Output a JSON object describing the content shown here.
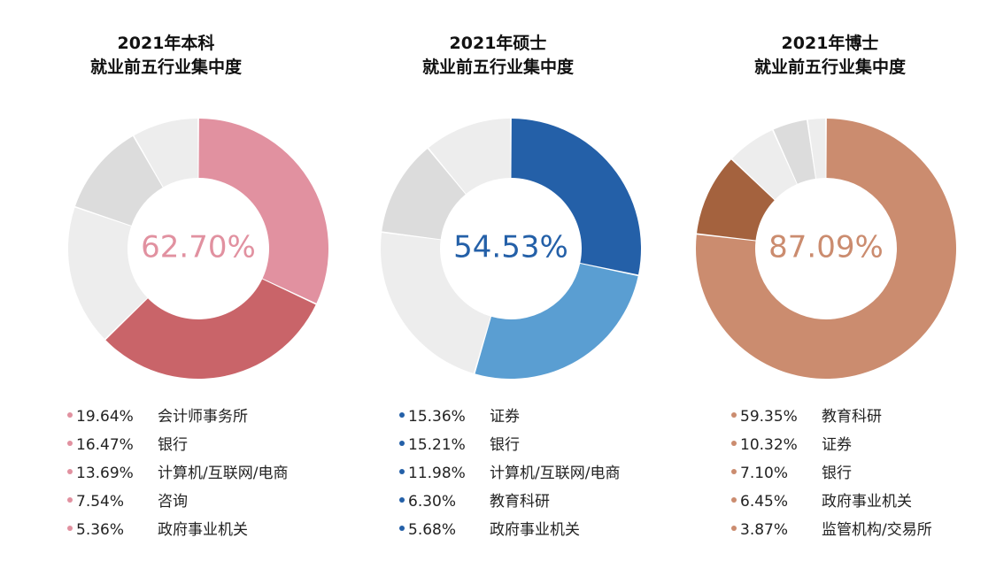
{
  "colors": {
    "grey_light": "#EDEDED",
    "grey_mid": "#DCDCDC"
  },
  "chart_data": [
    {
      "type": "pie",
      "title_line1": "2021年本科",
      "title_line2": "就业前五行业集中度",
      "center_label": "62.70%",
      "accent_color": "#E191A0",
      "legend": [
        {
          "pct": "19.64%",
          "label": "会计师事务所"
        },
        {
          "pct": "16.47%",
          "label": "银行"
        },
        {
          "pct": "13.69%",
          "label": "计算机/互联网/电商"
        },
        {
          "pct": "7.54%",
          "label": "咨询"
        },
        {
          "pct": "5.36%",
          "label": "政府事业机关"
        }
      ],
      "slices": [
        {
          "value": 32,
          "color": "#E191A0"
        },
        {
          "value": 30.7,
          "color": "#C96469"
        },
        {
          "value": 17.5,
          "color": "#EDEDED"
        },
        {
          "value": 11.5,
          "color": "#DCDCDC"
        },
        {
          "value": 8.3,
          "color": "#EDEDED"
        }
      ]
    },
    {
      "type": "pie",
      "title_line1": "2021年硕士",
      "title_line2": "就业前五行业集中度",
      "center_label": "54.53%",
      "accent_color": "#2460A8",
      "legend": [
        {
          "pct": "15.36%",
          "label": "证券"
        },
        {
          "pct": "15.21%",
          "label": "银行"
        },
        {
          "pct": "11.98%",
          "label": "计算机/互联网/电商"
        },
        {
          "pct": "6.30%",
          "label": "教育科研"
        },
        {
          "pct": "5.68%",
          "label": "政府事业机关"
        }
      ],
      "slices": [
        {
          "value": 28.3,
          "color": "#2460A8"
        },
        {
          "value": 26.23,
          "color": "#5A9ED2"
        },
        {
          "value": 22.5,
          "color": "#EDEDED"
        },
        {
          "value": 12,
          "color": "#DCDCDC"
        },
        {
          "value": 10.97,
          "color": "#EDEDED"
        }
      ]
    },
    {
      "type": "pie",
      "title_line1": "2021年博士",
      "title_line2": "就业前五行业集中度",
      "center_label": "87.09%",
      "accent_color": "#CB8C6F",
      "legend": [
        {
          "pct": "59.35%",
          "label": "教育科研"
        },
        {
          "pct": "10.32%",
          "label": "证券"
        },
        {
          "pct": "7.10%",
          "label": "银行"
        },
        {
          "pct": "6.45%",
          "label": "政府事业机关"
        },
        {
          "pct": "3.87%",
          "label": "监管机构/交易所"
        }
      ],
      "slices": [
        {
          "value": 76.8,
          "color": "#CB8C6F"
        },
        {
          "value": 10.3,
          "color": "#A4623E"
        },
        {
          "value": 6.2,
          "color": "#EDEDED"
        },
        {
          "value": 4.4,
          "color": "#DCDCDC"
        },
        {
          "value": 2.3,
          "color": "#EDEDED"
        }
      ]
    }
  ]
}
